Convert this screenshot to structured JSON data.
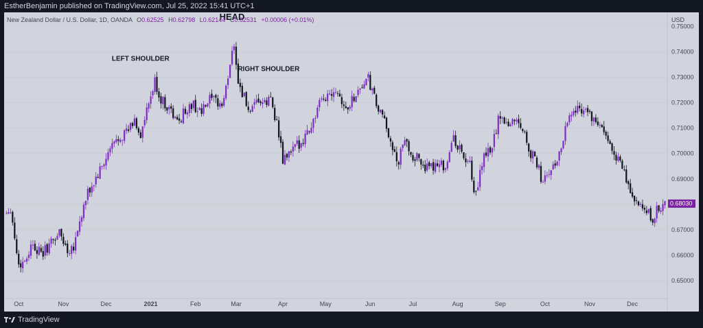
{
  "header": {
    "published_text": "EstherBenjamin published on TradingView.com, Jul 25, 2022 15:41 UTC+1"
  },
  "legend": {
    "symbol": "New Zealand Dollar / U.S. Dollar, 1D, OANDA",
    "o_label": "O",
    "o_value": "0.62525",
    "h_label": "H",
    "h_value": "0.62798",
    "l_label": "L",
    "l_value": "0.62144",
    "c_label": "C",
    "c_value": "0.62531",
    "change": "+0.00006 (+0.01%)"
  },
  "footer": {
    "brand": "TradingView"
  },
  "chart_data": {
    "type": "candlestick",
    "currency_label": "USD",
    "ylim": [
      0.643,
      0.7555
    ],
    "y_ticks": [
      {
        "value": 0.75,
        "label": "0.75000"
      },
      {
        "value": 0.74,
        "label": "0.74000"
      },
      {
        "value": 0.73,
        "label": "0.73000"
      },
      {
        "value": 0.72,
        "label": "0.72000"
      },
      {
        "value": 0.71,
        "label": "0.71000"
      },
      {
        "value": 0.7,
        "label": "0.70000"
      },
      {
        "value": 0.69,
        "label": "0.69000"
      },
      {
        "value": 0.68,
        "label": "0.68000"
      },
      {
        "value": 0.67,
        "label": "0.67000"
      },
      {
        "value": 0.66,
        "label": "0.66000"
      },
      {
        "value": 0.65,
        "label": "0.65000"
      }
    ],
    "last_price": {
      "value": 0.6803,
      "label": "0.68030"
    },
    "x_ticks": [
      {
        "label": "Oct",
        "bar": 6,
        "bold": false
      },
      {
        "label": "Nov",
        "bar": 28,
        "bold": false
      },
      {
        "label": "Dec",
        "bar": 49,
        "bold": false
      },
      {
        "label": "2021",
        "bar": 71,
        "bold": true
      },
      {
        "label": "Feb",
        "bar": 93,
        "bold": false
      },
      {
        "label": "Mar",
        "bar": 113,
        "bold": false
      },
      {
        "label": "Apr",
        "bar": 136,
        "bold": false
      },
      {
        "label": "May",
        "bar": 157,
        "bold": false
      },
      {
        "label": "Jun",
        "bar": 179,
        "bold": false
      },
      {
        "label": "Jul",
        "bar": 200,
        "bold": false
      },
      {
        "label": "Aug",
        "bar": 222,
        "bold": false
      },
      {
        "label": "Sep",
        "bar": 243,
        "bold": false
      },
      {
        "label": "Oct",
        "bar": 265,
        "bold": false
      },
      {
        "label": "Nov",
        "bar": 287,
        "bold": false
      },
      {
        "label": "Dec",
        "bar": 308,
        "bold": false
      }
    ],
    "annotations": [
      {
        "text": "LEFT SHOULDER",
        "bar": 66,
        "value": 0.7365,
        "size": 10
      },
      {
        "text": "HEAD",
        "bar": 111,
        "value": 0.7525,
        "size": 13
      },
      {
        "text": "RIGHT SHOULDER",
        "bar": 129,
        "value": 0.7325,
        "size": 10
      }
    ],
    "anchors": [
      [
        0,
        0.677
      ],
      [
        2,
        0.679
      ],
      [
        4,
        0.667
      ],
      [
        6,
        0.656
      ],
      [
        9,
        0.658
      ],
      [
        13,
        0.665
      ],
      [
        17,
        0.66
      ],
      [
        21,
        0.664
      ],
      [
        26,
        0.669
      ],
      [
        30,
        0.662
      ],
      [
        33,
        0.664
      ],
      [
        37,
        0.676
      ],
      [
        40,
        0.684
      ],
      [
        44,
        0.69
      ],
      [
        48,
        0.696
      ],
      [
        52,
        0.703
      ],
      [
        56,
        0.707
      ],
      [
        60,
        0.709
      ],
      [
        63,
        0.713
      ],
      [
        66,
        0.707
      ],
      [
        69,
        0.716
      ],
      [
        73,
        0.728
      ],
      [
        76,
        0.721
      ],
      [
        80,
        0.718
      ],
      [
        84,
        0.712
      ],
      [
        88,
        0.717
      ],
      [
        92,
        0.719
      ],
      [
        96,
        0.716
      ],
      [
        100,
        0.721
      ],
      [
        104,
        0.72
      ],
      [
        106,
        0.719
      ],
      [
        108,
        0.725
      ],
      [
        110,
        0.736
      ],
      [
        112,
        0.744
      ],
      [
        114,
        0.728
      ],
      [
        117,
        0.722
      ],
      [
        120,
        0.715
      ],
      [
        124,
        0.721
      ],
      [
        127,
        0.719
      ],
      [
        130,
        0.722
      ],
      [
        133,
        0.712
      ],
      [
        136,
        0.697
      ],
      [
        138,
        0.699
      ],
      [
        142,
        0.702
      ],
      [
        146,
        0.706
      ],
      [
        150,
        0.711
      ],
      [
        154,
        0.719
      ],
      [
        158,
        0.723
      ],
      [
        162,
        0.726
      ],
      [
        164,
        0.723
      ],
      [
        167,
        0.717
      ],
      [
        170,
        0.721
      ],
      [
        174,
        0.726
      ],
      [
        178,
        0.729
      ],
      [
        182,
        0.719
      ],
      [
        186,
        0.712
      ],
      [
        189,
        0.706
      ],
      [
        192,
        0.695
      ],
      [
        196,
        0.705
      ],
      [
        200,
        0.699
      ],
      [
        204,
        0.697
      ],
      [
        208,
        0.693
      ],
      [
        212,
        0.697
      ],
      [
        216,
        0.695
      ],
      [
        220,
        0.706
      ],
      [
        224,
        0.7
      ],
      [
        228,
        0.695
      ],
      [
        230,
        0.683
      ],
      [
        232,
        0.686
      ],
      [
        234,
        0.697
      ],
      [
        236,
        0.699
      ],
      [
        239,
        0.703
      ],
      [
        242,
        0.713
      ],
      [
        244,
        0.715
      ],
      [
        247,
        0.711
      ],
      [
        250,
        0.714
      ],
      [
        254,
        0.71
      ],
      [
        258,
        0.7
      ],
      [
        261,
        0.696
      ],
      [
        264,
        0.688
      ],
      [
        267,
        0.693
      ],
      [
        270,
        0.695
      ],
      [
        273,
        0.703
      ],
      [
        276,
        0.714
      ],
      [
        280,
        0.717
      ],
      [
        283,
        0.718
      ],
      [
        286,
        0.717
      ],
      [
        289,
        0.712
      ],
      [
        292,
        0.711
      ],
      [
        296,
        0.704
      ],
      [
        299,
        0.701
      ],
      [
        303,
        0.694
      ],
      [
        306,
        0.687
      ],
      [
        309,
        0.682
      ],
      [
        312,
        0.678
      ],
      [
        315,
        0.677
      ],
      [
        318,
        0.674
      ],
      [
        321,
        0.679
      ],
      [
        324,
        0.68
      ]
    ]
  }
}
